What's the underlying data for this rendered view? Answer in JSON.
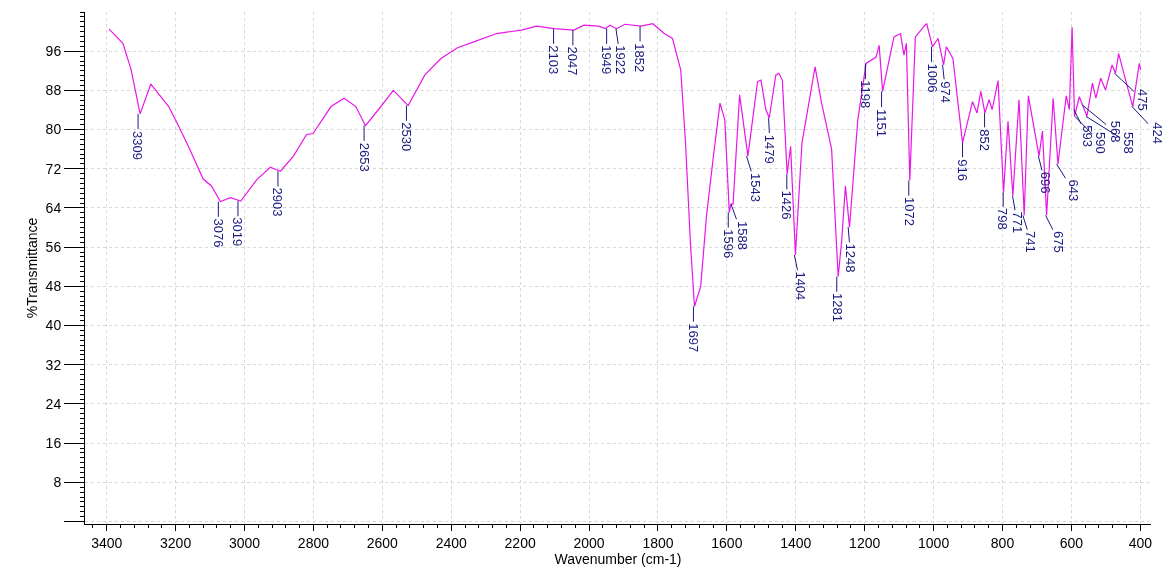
{
  "chart_data": {
    "type": "line",
    "xlabel": "Wavenumber (cm-1)",
    "ylabel": "%Transmittance",
    "xlim": [
      3463,
      369
    ],
    "ylim": [
      -0.5,
      104
    ],
    "xticks": [
      3400,
      3200,
      3000,
      2800,
      2600,
      2400,
      2200,
      2000,
      1800,
      1600,
      1400,
      1200,
      1000,
      800,
      600,
      400
    ],
    "yticks": [
      {
        "value": 0,
        "label": null
      },
      8,
      16,
      24,
      32,
      40,
      48,
      56,
      64,
      72,
      80,
      88,
      96
    ],
    "grid": true,
    "legend": false,
    "marker": "none",
    "line_style": "solid",
    "series": [
      {
        "color": "#e817e8",
        "x": [
          3393,
          3353,
          3329,
          3303,
          3272,
          3220,
          3191,
          3163,
          3120,
          3096,
          3070,
          3041,
          3011,
          2963,
          2925,
          2896,
          2858,
          2820,
          2801,
          2749,
          2711,
          2677,
          2649,
          2611,
          2568,
          2525,
          2477,
          2430,
          2382,
          2339,
          2268,
          2196,
          2153,
          2101,
          2044,
          2015,
          1972,
          1953,
          1939,
          1920,
          1896,
          1849,
          1815,
          1782,
          1758,
          1734,
          1720,
          1706,
          1694,
          1676,
          1659,
          1639,
          1620,
          1606,
          1593,
          1588,
          1582,
          1563,
          1539,
          1511,
          1501,
          1487,
          1477,
          1458,
          1449,
          1439,
          1425,
          1415,
          1401,
          1382,
          1344,
          1325,
          1296,
          1277,
          1267,
          1256,
          1244,
          1220,
          1196,
          1167,
          1158,
          1148,
          1115,
          1096,
          1086,
          1079,
          1069,
          1053,
          1025,
          1020,
          1003,
          987,
          971,
          963,
          944,
          916,
          887,
          874,
          863,
          851,
          839,
          830,
          813,
          797,
          784,
          770,
          752,
          737,
          725,
          694,
          684,
          672,
          653,
          639,
          615,
          606,
          598,
          591,
          577,
          555,
          539,
          529,
          515,
          501,
          482,
          472,
          463,
          434,
          422,
          403,
          399
        ],
        "values": [
          100.5,
          97.6,
          92.2,
          83.2,
          89.3,
          84.7,
          80.7,
          76.6,
          69.9,
          68.5,
          65.3,
          66.1,
          65.4,
          69.9,
          72.3,
          71.5,
          74.6,
          79.0,
          79.2,
          84.7,
          86.4,
          84.7,
          80.8,
          84.1,
          88.0,
          84.9,
          91.1,
          94.5,
          96.7,
          97.8,
          99.6,
          100.3,
          101.1,
          100.6,
          100.3,
          101.3,
          101.1,
          100.6,
          101.3,
          100.6,
          101.5,
          101.1,
          101.6,
          99.6,
          98.6,
          92.2,
          77.3,
          57.1,
          43.9,
          48.0,
          62.5,
          74.6,
          85.4,
          82.0,
          63.1,
          64.8,
          64.8,
          87.1,
          74.6,
          89.8,
          90.1,
          84.1,
          82.4,
          91.1,
          91.5,
          90.1,
          70.9,
          76.6,
          54.4,
          77.3,
          92.8,
          85.4,
          76.0,
          50.0,
          57.1,
          68.5,
          60.1,
          82.0,
          93.5,
          94.8,
          97.2,
          87.8,
          98.9,
          99.6,
          95.2,
          97.6,
          69.6,
          98.9,
          101.3,
          101.6,
          96.9,
          98.6,
          93.2,
          96.9,
          94.5,
          77.3,
          85.7,
          83.4,
          87.8,
          83.4,
          86.1,
          84.1,
          90.0,
          67.2,
          81.7,
          66.5,
          86.1,
          62.5,
          86.9,
          74.6,
          79.7,
          62.5,
          86.4,
          73.0,
          86.9,
          84.1,
          100.9,
          82.7,
          86.7,
          82.7,
          89.5,
          86.4,
          90.5,
          88.1,
          93.2,
          91.5,
          95.5,
          87.8,
          84.7,
          93.5,
          92.2
        ]
      }
    ],
    "annotations": [
      {
        "text": "3309",
        "x": 3309,
        "y": 83.2
      },
      {
        "text": "3076",
        "x": 3076,
        "y": 65.3
      },
      {
        "text": "3019",
        "x": 3019,
        "y": 65.4
      },
      {
        "text": "2903",
        "x": 2903,
        "y": 71.5
      },
      {
        "text": "2653",
        "x": 2653,
        "y": 80.8
      },
      {
        "text": "2530",
        "x": 2530,
        "y": 84.9
      },
      {
        "text": "2103",
        "x": 2103,
        "y": 100.6
      },
      {
        "text": "2047",
        "x": 2047,
        "y": 100.3
      },
      {
        "text": "1949",
        "x": 1949,
        "y": 100.6
      },
      {
        "text": "1922",
        "x": 1922,
        "y": 100.6
      },
      {
        "text": "1852",
        "x": 1852,
        "y": 101.1
      },
      {
        "text": "1697",
        "x": 1697,
        "y": 43.9
      },
      {
        "text": "1596",
        "x": 1596,
        "y": 63.1
      },
      {
        "text": "1588",
        "x": 1588,
        "y": 64.8
      },
      {
        "text": "1543",
        "x": 1543,
        "y": 74.6
      },
      {
        "text": "1479",
        "x": 1479,
        "y": 82.4
      },
      {
        "text": "1426",
        "x": 1426,
        "y": 70.9
      },
      {
        "text": "1404",
        "x": 1404,
        "y": 54.4
      },
      {
        "text": "1281",
        "x": 1281,
        "y": 50.0
      },
      {
        "text": "1248",
        "x": 1248,
        "y": 60.1
      },
      {
        "text": "1198",
        "x": 1198,
        "y": 93.5
      },
      {
        "text": "1151",
        "x": 1151,
        "y": 87.8
      },
      {
        "text": "1072",
        "x": 1072,
        "y": 69.6
      },
      {
        "text": "1006",
        "x": 1006,
        "y": 96.9
      },
      {
        "text": "974",
        "x": 974,
        "y": 93.2
      },
      {
        "text": "916",
        "x": 916,
        "y": 77.3
      },
      {
        "text": "852",
        "x": 852,
        "y": 83.4
      },
      {
        "text": "798",
        "x": 798,
        "y": 67.2
      },
      {
        "text": "771",
        "x": 771,
        "y": 66.5
      },
      {
        "text": "741",
        "x": 741,
        "y": 62.5
      },
      {
        "text": "696",
        "x": 696,
        "y": 74.6
      },
      {
        "text": "675",
        "x": 675,
        "y": 62.5
      },
      {
        "text": "643",
        "x": 643,
        "y": 73.0
      },
      {
        "text": "593",
        "x": 593,
        "y": 84.1
      },
      {
        "text": "590",
        "x": 590,
        "y": 82.7
      },
      {
        "text": "568",
        "x": 568,
        "y": 85.0
      },
      {
        "text": "558",
        "x": 558,
        "y": 82.7
      },
      {
        "text": "475",
        "x": 475,
        "y": 91.5
      },
      {
        "text": "424",
        "x": 424,
        "y": 84.7
      }
    ]
  }
}
